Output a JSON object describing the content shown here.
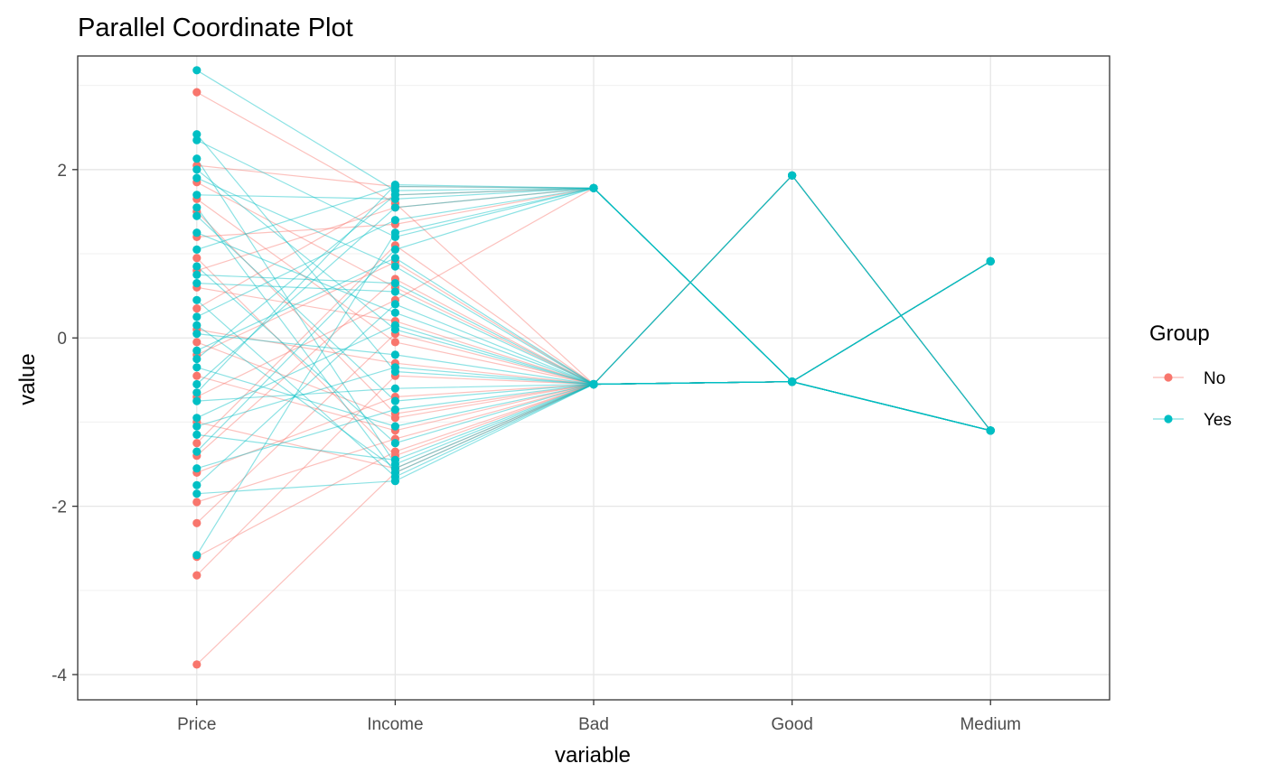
{
  "chart_data": {
    "type": "line",
    "subtype": "parallel-coordinates",
    "title": "Parallel Coordinate Plot",
    "xlabel": "variable",
    "ylabel": "value",
    "categories": [
      "Price",
      "Income",
      "Bad",
      "Good",
      "Medium"
    ],
    "ylim": [
      -4.3,
      3.35
    ],
    "yticks": [
      -4,
      -2,
      0,
      2
    ],
    "ytick_labels": [
      "-4",
      "-2",
      "0",
      "2"
    ],
    "grid": true,
    "legend": {
      "title": "Group",
      "position": "right",
      "entries": [
        {
          "name": "No",
          "color": "#F8766D"
        },
        {
          "name": "Yes",
          "color": "#00BFC4"
        }
      ]
    },
    "series": [
      {
        "name": "No",
        "color": "#F8766D",
        "lines": [
          [
            2.92,
            1.6,
            -0.55,
            -0.52,
            -1.1
          ],
          [
            2.05,
            1.8,
            1.78,
            -0.52,
            -1.1
          ],
          [
            1.85,
            0.6,
            -0.55,
            -0.52,
            0.91
          ],
          [
            1.5,
            -0.9,
            -0.55,
            1.93,
            -1.1
          ],
          [
            1.2,
            1.35,
            1.78,
            -0.52,
            -1.1
          ],
          [
            0.95,
            -1.4,
            -0.55,
            -0.52,
            0.91
          ],
          [
            0.6,
            0.2,
            -0.55,
            -0.52,
            -1.1
          ],
          [
            0.35,
            1.7,
            1.78,
            -0.52,
            -1.1
          ],
          [
            0.1,
            -0.3,
            -0.55,
            -0.52,
            0.91
          ],
          [
            -0.2,
            0.9,
            -0.55,
            1.93,
            -1.1
          ],
          [
            -0.45,
            -1.1,
            -0.55,
            -0.52,
            -1.1
          ],
          [
            -0.7,
            0.45,
            1.78,
            -0.52,
            -1.1
          ],
          [
            -1.0,
            -1.55,
            -0.55,
            -0.52,
            0.91
          ],
          [
            -1.25,
            1.1,
            -0.55,
            -0.52,
            -1.1
          ],
          [
            -1.6,
            -0.7,
            -0.55,
            -0.52,
            -1.1
          ],
          [
            -1.95,
            -1.2,
            -0.55,
            -0.52,
            0.91
          ],
          [
            -2.2,
            0.05,
            -0.55,
            1.93,
            -1.1
          ],
          [
            -2.6,
            -1.35,
            -0.55,
            -0.52,
            -1.1
          ],
          [
            -2.82,
            -0.45,
            -0.55,
            -0.52,
            -1.1
          ],
          [
            -3.88,
            -1.6,
            -0.55,
            -0.52,
            -1.1
          ],
          [
            1.65,
            -0.05,
            -0.55,
            -0.52,
            0.91
          ],
          [
            0.8,
            1.55,
            1.78,
            -0.52,
            -1.1
          ],
          [
            -0.05,
            -0.95,
            -0.55,
            -0.52,
            -1.1
          ],
          [
            -1.4,
            0.7,
            -0.55,
            -0.52,
            0.91
          ]
        ]
      },
      {
        "name": "Yes",
        "color": "#00BFC4",
        "lines": [
          [
            3.18,
            1.75,
            1.78,
            -0.52,
            -1.1
          ],
          [
            2.42,
            -0.4,
            -0.55,
            -0.52,
            0.91
          ],
          [
            2.35,
            1.2,
            1.78,
            -0.52,
            -1.1
          ],
          [
            2.13,
            -1.5,
            -0.55,
            1.93,
            -1.1
          ],
          [
            1.9,
            0.85,
            -0.55,
            -0.52,
            -1.1
          ],
          [
            1.7,
            1.65,
            1.78,
            -0.52,
            -1.1
          ],
          [
            1.45,
            -0.75,
            -0.55,
            -0.52,
            0.91
          ],
          [
            1.25,
            0.3,
            -0.55,
            -0.52,
            -1.1
          ],
          [
            1.05,
            1.8,
            1.78,
            -0.52,
            -1.1
          ],
          [
            0.85,
            -1.25,
            -0.55,
            -0.52,
            0.91
          ],
          [
            0.65,
            0.55,
            -0.55,
            1.93,
            -1.1
          ],
          [
            0.45,
            -1.65,
            -0.55,
            -0.52,
            -1.1
          ],
          [
            0.25,
            1.4,
            1.78,
            -0.52,
            -1.1
          ],
          [
            0.05,
            -0.2,
            -0.55,
            -0.52,
            0.91
          ],
          [
            -0.15,
            0.95,
            -0.55,
            -0.52,
            -1.1
          ],
          [
            -0.35,
            -1.05,
            -0.55,
            -0.52,
            -1.1
          ],
          [
            -0.55,
            1.55,
            1.78,
            -0.52,
            -1.1
          ],
          [
            -0.75,
            -0.6,
            -0.55,
            -0.52,
            0.91
          ],
          [
            -0.95,
            0.15,
            -0.55,
            1.93,
            -1.1
          ],
          [
            -1.15,
            -1.45,
            -0.55,
            -0.52,
            -1.1
          ],
          [
            -1.35,
            1.05,
            1.78,
            -0.52,
            -1.1
          ],
          [
            -1.55,
            -0.85,
            -0.55,
            -0.52,
            0.91
          ],
          [
            -1.75,
            0.4,
            -0.55,
            -0.52,
            -1.1
          ],
          [
            -1.85,
            -1.7,
            -0.55,
            -0.52,
            -1.1
          ],
          [
            -2.58,
            1.25,
            1.78,
            -0.52,
            -1.1
          ],
          [
            1.55,
            -1.6,
            -0.55,
            -0.52,
            -1.1
          ],
          [
            0.75,
            0.65,
            -0.55,
            -0.52,
            0.91
          ],
          [
            -0.25,
            1.7,
            1.78,
            -0.52,
            -1.1
          ],
          [
            -1.05,
            -0.35,
            -0.55,
            1.93,
            -1.1
          ],
          [
            2.0,
            0.1,
            -0.55,
            -0.52,
            -1.1
          ],
          [
            0.15,
            -1.55,
            -0.55,
            -0.52,
            0.91
          ],
          [
            -0.65,
            1.82,
            1.78,
            -0.52,
            -1.1
          ]
        ]
      }
    ]
  }
}
